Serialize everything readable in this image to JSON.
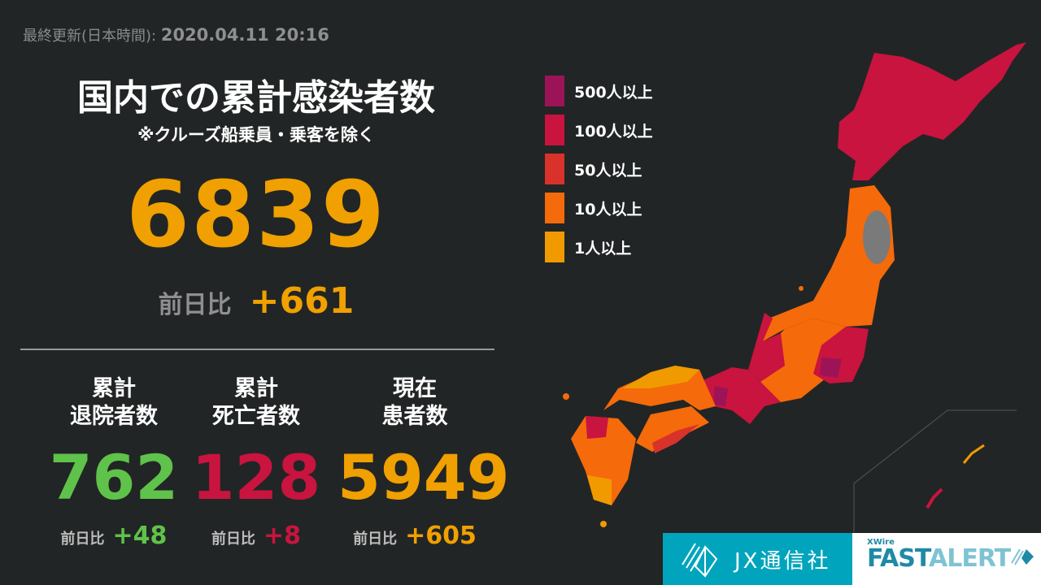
{
  "updated": {
    "label": "最終更新(日本時間):",
    "datetime": "2020.04.11 20:16"
  },
  "title": "国内での累計感染者数",
  "note": "※クルーズ船乗員・乗客を除く",
  "total": {
    "value": "6839",
    "diff_label": "前日比",
    "diff_value": "+661",
    "color": "#f0a000"
  },
  "stats": [
    {
      "heading1": "累計",
      "heading2": "退院者数",
      "value": "762",
      "diff_label": "前日比",
      "diff_value": "+48",
      "color": "#5fc24a"
    },
    {
      "heading1": "累計",
      "heading2": "死亡者数",
      "value": "128",
      "diff_label": "前日比",
      "diff_value": "+8",
      "color": "#c8143f"
    },
    {
      "heading1": "現在",
      "heading2": "患者数",
      "value": "5949",
      "diff_label": "前日比",
      "diff_value": "+605",
      "color": "#f0a000"
    }
  ],
  "legend": [
    {
      "label": "500人以上",
      "color": "#9c1457"
    },
    {
      "label": "100人以上",
      "color": "#c8143f"
    },
    {
      "label": "50人以上",
      "color": "#d8322a"
    },
    {
      "label": "10人以上",
      "color": "#f56a0a"
    },
    {
      "label": "1人以上",
      "color": "#f09a00"
    }
  ],
  "branding": {
    "jx": "JX通信社",
    "xwire": "XWire",
    "fast": "FAST",
    "alert": "ALERT"
  }
}
